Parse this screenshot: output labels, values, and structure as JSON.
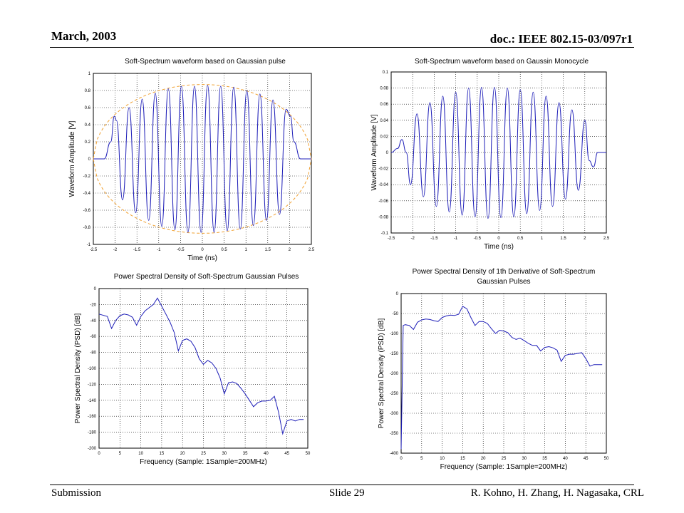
{
  "header": {
    "date": "March, 2003",
    "doc": "doc.: IEEE 802.15-03/097r1"
  },
  "footer": {
    "submission": "Submission",
    "slide": "Slide 29",
    "authors": "R. Kohno, H. Zhang, H. Nagasaka, CRL"
  },
  "colors": {
    "curve": "#1f1fb8",
    "envelope": "#f0a030",
    "grid": "#000000"
  },
  "chart_data": [
    {
      "type": "line",
      "title": "Soft-Spectrum waveform based on Gaussian pulse",
      "xlabel": "Time (ns)",
      "ylabel": "Waveform Amplitude [V]",
      "xlim": [
        -2.5,
        2.5
      ],
      "ylim": [
        -1,
        1
      ],
      "xticks": [
        -2.5,
        -2,
        -1.5,
        -1,
        -0.5,
        0,
        0.5,
        1,
        1.5,
        2,
        2.5
      ],
      "yticks": [
        -1,
        -0.8,
        -0.6,
        -0.4,
        -0.2,
        0,
        0.2,
        0.4,
        0.6,
        0.8,
        1
      ],
      "grid": true,
      "series": [
        {
          "x": [
            -2.5,
            -2.25,
            -2.1,
            -2.02,
            -1.97,
            -1.83,
            -1.68,
            -1.53,
            -1.38,
            -1.23,
            -1.08,
            -0.93,
            -0.78,
            -0.63,
            -0.48,
            -0.33,
            -0.18,
            -0.03,
            0.12,
            0.27,
            0.42,
            0.57,
            0.72,
            0.87,
            1.02,
            1.17,
            1.32,
            1.47,
            1.62,
            1.77,
            1.92,
            2.02,
            2.1,
            2.25,
            2.5
          ],
          "y": [
            0,
            0.0,
            0.2,
            0.5,
            0.45,
            -0.48,
            0.6,
            -0.63,
            0.7,
            -0.72,
            0.77,
            -0.79,
            0.82,
            -0.83,
            0.85,
            -0.86,
            0.85,
            -0.86,
            0.86,
            -0.86,
            0.85,
            -0.84,
            0.84,
            -0.82,
            0.8,
            -0.78,
            0.76,
            -0.72,
            0.69,
            -0.65,
            0.58,
            0.5,
            0.2,
            0.0,
            0
          ]
        }
      ],
      "envelope": {
        "amplitude": 0.87,
        "style": "dashed"
      }
    },
    {
      "type": "line",
      "title": "Soft-Spectrum waveform based on Gaussin Monocycle",
      "xlabel": "Time (ns)",
      "ylabel": "Waveform Amplitude [V]",
      "xlim": [
        -2.5,
        2.5
      ],
      "ylim": [
        -0.1,
        0.1
      ],
      "xticks": [
        -2.5,
        -2,
        -1.5,
        -1,
        -0.5,
        0,
        0.5,
        1,
        1.5,
        2,
        2.5
      ],
      "yticks": [
        -0.1,
        -0.08,
        -0.06,
        -0.04,
        -0.02,
        0,
        0.02,
        0.04,
        0.06,
        0.08,
        0.1
      ],
      "grid": true,
      "series": [
        {
          "x": [
            -2.5,
            -2.35,
            -2.25,
            -2.15,
            -2.05,
            -1.9,
            -1.75,
            -1.6,
            -1.45,
            -1.3,
            -1.15,
            -1.0,
            -0.85,
            -0.7,
            -0.55,
            -0.4,
            -0.25,
            -0.1,
            0.05,
            0.2,
            0.35,
            0.5,
            0.65,
            0.8,
            0.95,
            1.1,
            1.25,
            1.4,
            1.55,
            1.7,
            1.85,
            2.0,
            2.1,
            2.2,
            2.3,
            2.5
          ],
          "y": [
            0,
            0.005,
            0.016,
            0.0,
            -0.04,
            0.048,
            -0.055,
            0.062,
            -0.067,
            0.07,
            -0.074,
            0.075,
            -0.078,
            0.08,
            -0.08,
            0.081,
            -0.082,
            0.081,
            -0.081,
            0.08,
            -0.08,
            0.078,
            -0.076,
            0.075,
            -0.072,
            0.07,
            -0.067,
            0.062,
            -0.058,
            0.053,
            -0.047,
            0.04,
            -0.01,
            -0.018,
            0.0,
            0
          ]
        }
      ]
    },
    {
      "type": "line",
      "title": "Power Spectral Density of Soft-Spectrum Gaussian Pulses",
      "xlabel": "Frequency (Sample: 1Sample=200MHz)",
      "ylabel": "Power Spectral Density (PSD) [dB]",
      "xlim": [
        0,
        50
      ],
      "ylim": [
        -200,
        0
      ],
      "xticks": [
        0,
        5,
        10,
        15,
        20,
        25,
        30,
        35,
        40,
        45,
        50
      ],
      "yticks": [
        -200,
        -180,
        -160,
        -140,
        -120,
        -100,
        -80,
        -60,
        -40,
        -20,
        0
      ],
      "grid": true,
      "series": [
        {
          "x": [
            0,
            2,
            3,
            4,
            5,
            6,
            7,
            8,
            9,
            10,
            11,
            12,
            13,
            14,
            15,
            16,
            17,
            18,
            19,
            20,
            21,
            22,
            23,
            24,
            25,
            26,
            27,
            28,
            29,
            30,
            31,
            32,
            33,
            34,
            35,
            36,
            37,
            38,
            39,
            40,
            41,
            42,
            43,
            44,
            45,
            46,
            47,
            48,
            49
          ],
          "y": [
            -32,
            -35,
            -50,
            -40,
            -34,
            -32,
            -33,
            -36,
            -46,
            -35,
            -28,
            -24,
            -20,
            -12,
            -22,
            -32,
            -42,
            -55,
            -78,
            -65,
            -63,
            -66,
            -74,
            -88,
            -95,
            -90,
            -93,
            -100,
            -112,
            -132,
            -118,
            -117,
            -119,
            -125,
            -132,
            -140,
            -148,
            -143,
            -141,
            -141,
            -140,
            -135,
            -155,
            -182,
            -166,
            -164,
            -166,
            -164,
            -164
          ]
        }
      ]
    },
    {
      "type": "line",
      "title": "Power Spectral Density of 1th Derivative of Soft-Spectrum Gaussian Pulses",
      "xlabel": "Frequency (Sample: 1Sample=200MHz)",
      "ylabel": "Power Spectral Density (PSD) [dB]",
      "xlim": [
        0,
        50
      ],
      "ylim": [
        -400,
        0
      ],
      "xticks": [
        0,
        5,
        10,
        15,
        20,
        25,
        30,
        35,
        40,
        45,
        50
      ],
      "yticks": [
        -400,
        -350,
        -300,
        -250,
        -200,
        -150,
        -100,
        -50,
        0
      ],
      "grid": true,
      "series": [
        {
          "x": [
            0,
            0.5,
            1,
            2,
            3,
            4,
            5,
            6,
            7,
            8,
            9,
            10,
            11,
            12,
            13,
            14,
            15,
            16,
            17,
            18,
            19,
            20,
            21,
            22,
            23,
            24,
            25,
            26,
            27,
            28,
            29,
            30,
            31,
            32,
            33,
            34,
            35,
            36,
            37,
            38,
            39,
            40,
            41,
            42,
            43,
            44,
            45,
            46,
            47,
            48,
            49
          ],
          "y": [
            -390,
            -80,
            -78,
            -80,
            -90,
            -72,
            -66,
            -64,
            -65,
            -68,
            -70,
            -60,
            -56,
            -54,
            -55,
            -52,
            -32,
            -38,
            -60,
            -80,
            -70,
            -70,
            -75,
            -88,
            -100,
            -92,
            -94,
            -98,
            -110,
            -115,
            -112,
            -118,
            -125,
            -130,
            -130,
            -144,
            -135,
            -133,
            -136,
            -142,
            -170,
            -155,
            -152,
            -152,
            -150,
            -148,
            -163,
            -182,
            -178,
            -178,
            -178
          ]
        }
      ]
    }
  ]
}
